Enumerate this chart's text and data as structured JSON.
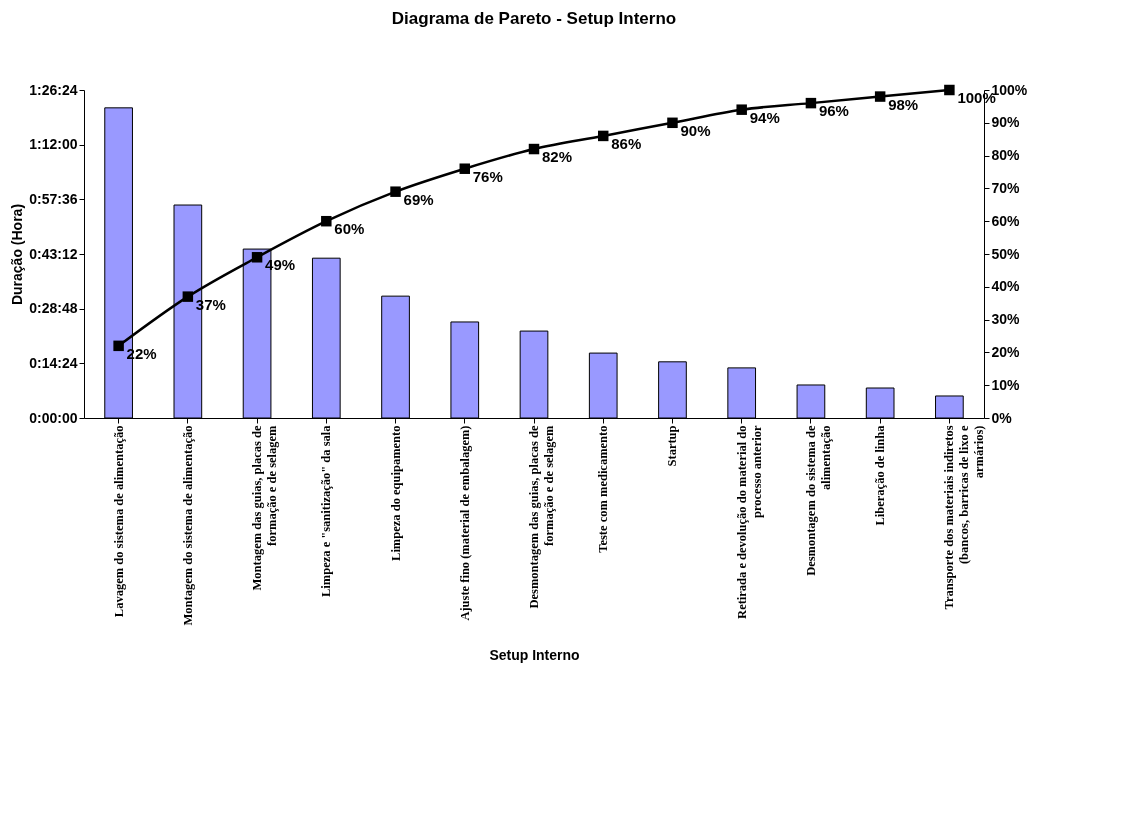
{
  "chart_data": {
    "type": "bar",
    "title": "Diagrama de Pareto - Setup Interno",
    "xlabel": "Setup Interno",
    "ylabel": "Duração (Hora)",
    "categories": [
      "Lavagem do sistema de alimentação",
      "Montagem do sistema de alimentação",
      "Montagem das guias, placas de formação e de selagem",
      "Limpeza e \"sanitização\" da sala",
      "Limpeza do equipamento",
      "Ajuste fino (material de embalagem)",
      "Desmontagem das guias, placas de formação e de selagem",
      "Teste com medicamento",
      "Startup",
      "Retirada e devolução do material do processo anterior",
      "Desmontagem do sistema de alimentação",
      "Liberação de linha",
      "Transporte dos materiais indiretos (bancos, barricas de lixo e armários)"
    ],
    "series": [
      {
        "color": "#9999ff",
        "values": [
          81.7,
          56.1,
          44.5,
          42.1,
          32.1,
          25.3,
          22.9,
          17.1,
          14.8,
          13.2,
          8.7,
          7.9,
          5.8
        ]
      },
      {
        "type": "line",
        "axis": "y2",
        "color": "#000000",
        "marker": "square",
        "values": [
          22,
          37,
          49,
          60,
          69,
          76,
          82,
          86,
          90,
          94,
          96,
          98,
          100
        ],
        "value_labels": [
          "22%",
          "37%",
          "49%",
          "60%",
          "69%",
          "76%",
          "82%",
          "86%",
          "90%",
          "94%",
          "96%",
          "98%",
          "100%"
        ]
      }
    ],
    "ylim": [
      0,
      86.4
    ],
    "yticks": [
      {
        "value": 0,
        "label": "0:00:00"
      },
      {
        "value": 14.4,
        "label": "0:14:24"
      },
      {
        "value": 28.8,
        "label": "0:28:48"
      },
      {
        "value": 43.2,
        "label": "0:43:12"
      },
      {
        "value": 57.6,
        "label": "0:57:36"
      },
      {
        "value": 72,
        "label": "1:12:00"
      },
      {
        "value": 86.4,
        "label": "1:26:24"
      }
    ],
    "y2lim": [
      0,
      100
    ],
    "y2ticks": [
      {
        "value": 0,
        "label": "0%"
      },
      {
        "value": 10,
        "label": "10%"
      },
      {
        "value": 20,
        "label": "20%"
      },
      {
        "value": 30,
        "label": "30%"
      },
      {
        "value": 40,
        "label": "40%"
      },
      {
        "value": 50,
        "label": "50%"
      },
      {
        "value": 60,
        "label": "60%"
      },
      {
        "value": 70,
        "label": "70%"
      },
      {
        "value": 80,
        "label": "80%"
      },
      {
        "value": 90,
        "label": "90%"
      },
      {
        "value": 100,
        "label": "100%"
      }
    ],
    "grid": false
  }
}
